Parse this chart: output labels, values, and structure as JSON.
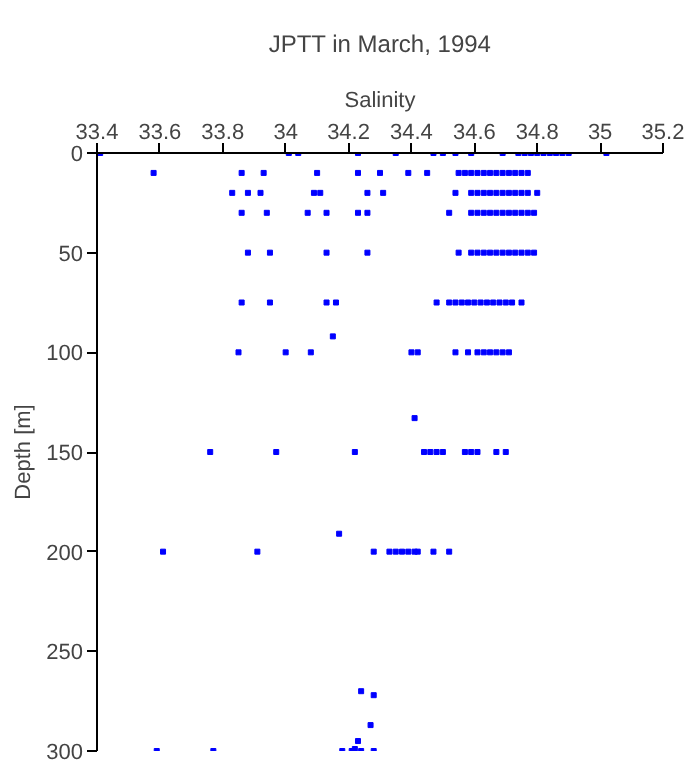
{
  "chart_data": {
    "type": "scatter",
    "title": "JPTT in March, 1994",
    "xlabel": "Salinity",
    "ylabel": "Depth [m]",
    "xlim": [
      33.4,
      35.2
    ],
    "xticks": [
      33.4,
      33.6,
      33.8,
      34,
      34.2,
      34.4,
      34.6,
      34.8,
      35,
      35.2
    ],
    "ylim": [
      300,
      0
    ],
    "yticks": [
      0,
      50,
      100,
      150,
      200,
      250,
      300
    ],
    "grid": false,
    "marker": "square",
    "series": [
      {
        "color": "#0000ff",
        "x": [
          33.41,
          34.01,
          34.04,
          34.23,
          34.35,
          34.47,
          34.5,
          34.54,
          34.59,
          34.69,
          34.74,
          34.76,
          34.78,
          34.8,
          34.82,
          34.84,
          34.86,
          34.88,
          34.9,
          35.02,
          33.58,
          33.86,
          33.93,
          34.1,
          34.23,
          34.3,
          34.39,
          34.45,
          34.55,
          34.57,
          34.59,
          34.61,
          34.63,
          34.65,
          34.67,
          34.69,
          34.71,
          34.73,
          34.75,
          34.77,
          33.83,
          33.88,
          33.92,
          34.09,
          34.11,
          34.26,
          34.31,
          34.54,
          34.59,
          34.61,
          34.63,
          34.65,
          34.67,
          34.69,
          34.71,
          34.73,
          34.75,
          34.77,
          34.8,
          33.86,
          33.94,
          34.07,
          34.13,
          34.23,
          34.26,
          34.52,
          34.59,
          34.61,
          34.63,
          34.65,
          34.67,
          34.69,
          34.71,
          34.73,
          34.75,
          34.77,
          34.79,
          33.88,
          33.95,
          34.13,
          34.26,
          34.55,
          34.59,
          34.61,
          34.63,
          34.65,
          34.67,
          34.69,
          34.71,
          34.73,
          34.75,
          34.77,
          34.79,
          33.86,
          33.95,
          34.13,
          34.16,
          34.48,
          34.52,
          34.54,
          34.56,
          34.58,
          34.6,
          34.62,
          34.64,
          34.66,
          34.68,
          34.7,
          34.72,
          34.75,
          34.15,
          33.85,
          34.0,
          34.08,
          34.4,
          34.42,
          34.54,
          34.58,
          34.61,
          34.63,
          34.65,
          34.67,
          34.69,
          34.71,
          34.41,
          33.76,
          33.97,
          34.22,
          34.44,
          34.46,
          34.48,
          34.5,
          34.57,
          34.59,
          34.61,
          34.67,
          34.7,
          34.17,
          33.61,
          33.91,
          34.28,
          34.33,
          34.35,
          34.37,
          34.39,
          34.41,
          34.42,
          34.47,
          34.52,
          34.24,
          34.28,
          34.27,
          34.23,
          34.22,
          33.59,
          33.77,
          34.18,
          34.21,
          34.24,
          34.28
        ],
        "values": [
          0,
          0,
          0,
          0,
          0,
          0,
          0,
          0,
          0,
          0,
          0,
          0,
          0,
          0,
          0,
          0,
          0,
          0,
          0,
          0,
          10,
          10,
          10,
          10,
          10,
          10,
          10,
          10,
          10,
          10,
          10,
          10,
          10,
          10,
          10,
          10,
          10,
          10,
          10,
          10,
          20,
          20,
          20,
          20,
          20,
          20,
          20,
          20,
          20,
          20,
          20,
          20,
          20,
          20,
          20,
          20,
          20,
          20,
          20,
          30,
          30,
          30,
          30,
          30,
          30,
          30,
          30,
          30,
          30,
          30,
          30,
          30,
          30,
          30,
          30,
          30,
          30,
          50,
          50,
          50,
          50,
          50,
          50,
          50,
          50,
          50,
          50,
          50,
          50,
          50,
          50,
          50,
          50,
          75,
          75,
          75,
          75,
          75,
          75,
          75,
          75,
          75,
          75,
          75,
          75,
          75,
          75,
          75,
          75,
          75,
          92,
          100,
          100,
          100,
          100,
          100,
          100,
          100,
          100,
          100,
          100,
          100,
          100,
          100,
          133,
          150,
          150,
          150,
          150,
          150,
          150,
          150,
          150,
          150,
          150,
          150,
          150,
          191,
          200,
          200,
          200,
          200,
          200,
          200,
          200,
          200,
          200,
          200,
          200,
          270,
          272,
          287,
          295,
          299,
          300,
          300,
          300,
          300,
          300,
          300
        ]
      }
    ]
  }
}
